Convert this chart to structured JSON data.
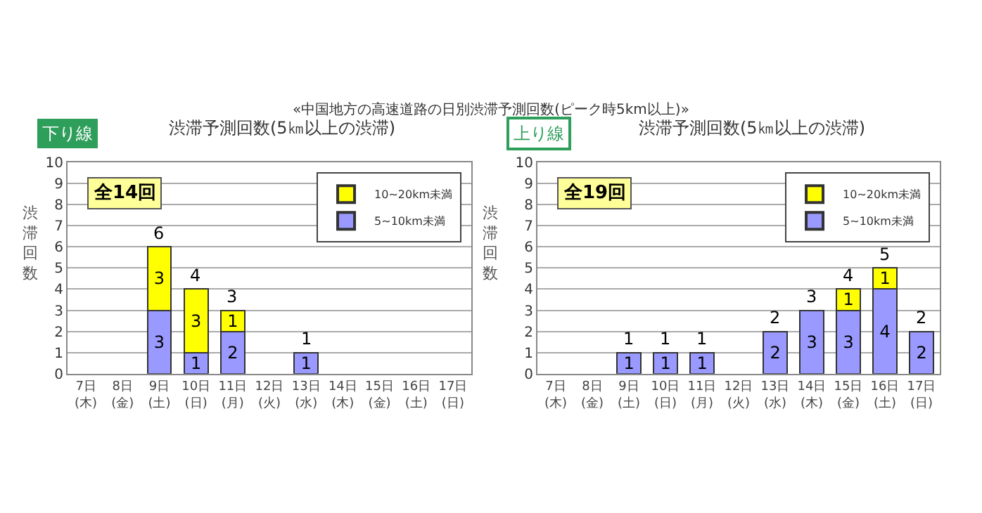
{
  "chart_data": [
    {
      "type": "bar",
      "title": "下り線",
      "subtitle": "渋滞予測回数(5㎞以上の渋滞)",
      "ylabel": "渋滞回数",
      "annotations": [
        "«中国地方の高速道路の日別渋滞予測回数(ピーク時5km以上)»",
        "全14回"
      ],
      "categories": [
        "7日\n(木)",
        "8日\n(金)",
        "9日\n(土)",
        "10日\n(日)",
        "11日\n(月)",
        "12日\n(火)",
        "13日\n(水)",
        "14日\n(木)",
        "15日\n(金)",
        "16日\n(土)",
        "17日\n(日)"
      ],
      "stacked": true,
      "series": [
        {
          "name": "5~10km未満",
          "color": "#9999ff",
          "values": [
            null,
            null,
            3,
            1,
            2,
            null,
            1,
            null,
            null,
            null,
            null
          ]
        },
        {
          "name": "10~20km未満",
          "color": "#ffff00",
          "values": [
            null,
            null,
            3,
            3,
            1,
            null,
            null,
            null,
            null,
            null,
            null
          ]
        }
      ],
      "totals": [
        null,
        null,
        "6",
        "4",
        "3",
        null,
        "1",
        null,
        null,
        null,
        null
      ],
      "data_labels": true,
      "ylim": [
        0,
        10
      ],
      "yticks": [
        0,
        1,
        2,
        3,
        4,
        5,
        6,
        7,
        8,
        9,
        10
      ],
      "grid": "y",
      "legend": "top right"
    },
    {
      "type": "bar",
      "title": "上り線",
      "subtitle": "渋滞予測回数(5㎞以上の渋滞)",
      "ylabel": "渋滞回数",
      "annotations": [
        "全19回"
      ],
      "categories": [
        "7日\n(木)",
        "8日\n(金)",
        "9日\n(土)",
        "10日\n(日)",
        "11日\n(月)",
        "12日\n(火)",
        "13日\n(水)",
        "14日\n(木)",
        "15日\n(金)",
        "16日\n(土)",
        "17日\n(日)"
      ],
      "stacked": true,
      "series": [
        {
          "name": "5~10km未満",
          "color": "#9999ff",
          "values": [
            null,
            null,
            1,
            1,
            1,
            null,
            2,
            3,
            3,
            4,
            2
          ]
        },
        {
          "name": "10~20km未満",
          "color": "#ffff00",
          "values": [
            null,
            null,
            null,
            null,
            null,
            null,
            null,
            null,
            1,
            1,
            null
          ]
        }
      ],
      "totals": [
        null,
        null,
        "1",
        "1",
        "1",
        null,
        "2",
        "3",
        "4",
        "5",
        "2"
      ],
      "data_labels": true,
      "ylim": [
        0,
        10
      ],
      "yticks": [
        0,
        1,
        2,
        3,
        4,
        5,
        6,
        7,
        8,
        9,
        10
      ],
      "grid": "y",
      "legend": "top right"
    }
  ]
}
